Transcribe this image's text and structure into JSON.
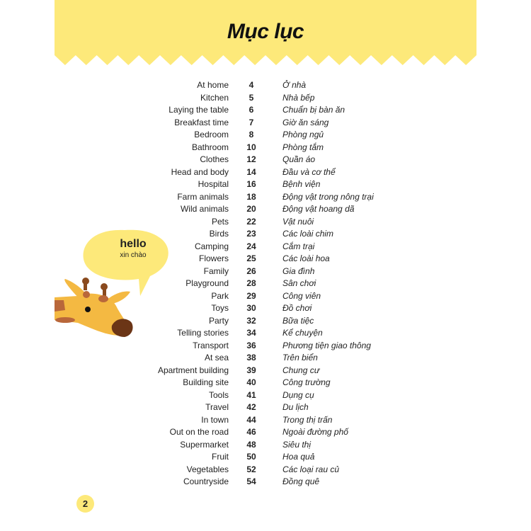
{
  "header": {
    "title": "Mục lục",
    "color": "#fde97a"
  },
  "speech_bubble": {
    "word": "hello",
    "translation": "xin chào"
  },
  "toc": [
    {
      "en": "At home",
      "page": "4",
      "vi": "Ở nhà"
    },
    {
      "en": "Kitchen",
      "page": "5",
      "vi": "Nhà bếp"
    },
    {
      "en": "Laying the table",
      "page": "6",
      "vi": "Chuẩn bị bàn ăn"
    },
    {
      "en": "Breakfast time",
      "page": "7",
      "vi": "Giờ ăn sáng"
    },
    {
      "en": "Bedroom",
      "page": "8",
      "vi": "Phòng ngủ"
    },
    {
      "en": "Bathroom",
      "page": "10",
      "vi": "Phòng tắm"
    },
    {
      "en": "Clothes",
      "page": "12",
      "vi": "Quần áo"
    },
    {
      "en": "Head and body",
      "page": "14",
      "vi": "Đầu và cơ thể"
    },
    {
      "en": "Hospital",
      "page": "16",
      "vi": "Bệnh viện"
    },
    {
      "en": "Farm animals",
      "page": "18",
      "vi": "Động vật trong nông trại"
    },
    {
      "en": "Wild animals",
      "page": "20",
      "vi": "Động vật hoang dã"
    },
    {
      "en": "Pets",
      "page": "22",
      "vi": "Vật nuôi"
    },
    {
      "en": "Birds",
      "page": "23",
      "vi": "Các loài chim"
    },
    {
      "en": "Camping",
      "page": "24",
      "vi": "Cắm trại"
    },
    {
      "en": "Flowers",
      "page": "25",
      "vi": "Các loài hoa"
    },
    {
      "en": "Family",
      "page": "26",
      "vi": "Gia đình"
    },
    {
      "en": "Playground",
      "page": "28",
      "vi": "Sân chơi"
    },
    {
      "en": "Park",
      "page": "29",
      "vi": "Công viên"
    },
    {
      "en": "Toys",
      "page": "30",
      "vi": "Đồ chơi"
    },
    {
      "en": "Party",
      "page": "32",
      "vi": "Bữa tiệc"
    },
    {
      "en": "Telling stories",
      "page": "34",
      "vi": "Kể chuyện"
    },
    {
      "en": "Transport",
      "page": "36",
      "vi": "Phương tiện giao thông"
    },
    {
      "en": "At sea",
      "page": "38",
      "vi": "Trên biển"
    },
    {
      "en": "Apartment building",
      "page": "39",
      "vi": "Chung cư"
    },
    {
      "en": "Building site",
      "page": "40",
      "vi": "Công trường"
    },
    {
      "en": "Tools",
      "page": "41",
      "vi": "Dụng cụ"
    },
    {
      "en": "Travel",
      "page": "42",
      "vi": "Du lịch"
    },
    {
      "en": "In town",
      "page": "44",
      "vi": "Trong thị trấn"
    },
    {
      "en": "Out on the road",
      "page": "46",
      "vi": "Ngoài đường phố"
    },
    {
      "en": "Supermarket",
      "page": "48",
      "vi": "Siêu thị"
    },
    {
      "en": "Fruit",
      "page": "50",
      "vi": "Hoa quả"
    },
    {
      "en": "Vegetables",
      "page": "52",
      "vi": "Các loại rau củ"
    },
    {
      "en": "Countryside",
      "page": "54",
      "vi": "Đồng quê"
    }
  ],
  "page_number": "2"
}
